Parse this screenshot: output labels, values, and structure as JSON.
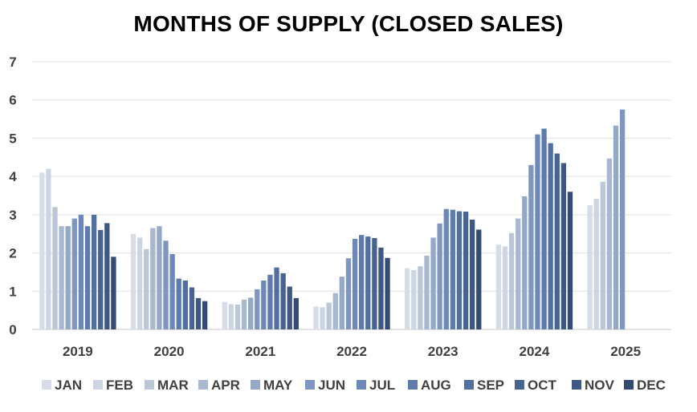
{
  "chart_data": {
    "type": "bar",
    "title": "MONTHS OF SUPPLY (CLOSED SALES)",
    "xlabel": "",
    "ylabel": "",
    "ylim": [
      0,
      7
    ],
    "yticks": [
      "0",
      "1",
      "2",
      "3",
      "4",
      "5",
      "6",
      "7"
    ],
    "grid": true,
    "legend_position": "bottom",
    "categories": [
      "2019",
      "2020",
      "2021",
      "2022",
      "2023",
      "2024",
      "2025"
    ],
    "series": [
      {
        "name": "JAN",
        "color": "#d6dde7",
        "values": [
          4.1,
          2.5,
          0.72,
          0.6,
          1.6,
          2.22,
          3.25
        ]
      },
      {
        "name": "FEB",
        "color": "#cdd5e2",
        "values": [
          4.2,
          2.4,
          0.66,
          0.58,
          1.55,
          2.17,
          3.42
        ]
      },
      {
        "name": "MAR",
        "color": "#bbc7d9",
        "values": [
          3.2,
          2.1,
          0.65,
          0.7,
          1.65,
          2.52,
          3.86
        ]
      },
      {
        "name": "APR",
        "color": "#a9b8d0",
        "values": [
          2.7,
          2.65,
          0.78,
          0.95,
          1.93,
          2.9,
          4.47
        ]
      },
      {
        "name": "MAY",
        "color": "#94a8c8",
        "values": [
          2.7,
          2.7,
          0.83,
          1.38,
          2.4,
          3.48,
          5.33
        ]
      },
      {
        "name": "JUN",
        "color": "#7f97c0",
        "values": [
          2.9,
          2.32,
          1.05,
          1.86,
          2.77,
          4.3,
          5.75
        ]
      },
      {
        "name": "JUL",
        "color": "#6d89b9",
        "values": [
          3.0,
          1.97,
          1.28,
          2.37,
          3.15,
          5.1,
          null
        ]
      },
      {
        "name": "AUG",
        "color": "#5e7bab",
        "values": [
          2.7,
          1.33,
          1.43,
          2.47,
          3.13,
          5.25,
          null
        ]
      },
      {
        "name": "SEP",
        "color": "#52709f",
        "values": [
          3.0,
          1.28,
          1.62,
          2.43,
          3.09,
          4.87,
          null
        ]
      },
      {
        "name": "OCT",
        "color": "#476391",
        "values": [
          2.6,
          1.1,
          1.47,
          2.39,
          3.08,
          4.6,
          null
        ]
      },
      {
        "name": "NOV",
        "color": "#3e5783",
        "values": [
          2.78,
          0.82,
          1.12,
          2.14,
          2.87,
          4.35,
          null
        ]
      },
      {
        "name": "DEC",
        "color": "#344b74",
        "values": [
          1.9,
          0.74,
          0.82,
          1.87,
          2.61,
          3.6,
          null
        ]
      }
    ]
  }
}
